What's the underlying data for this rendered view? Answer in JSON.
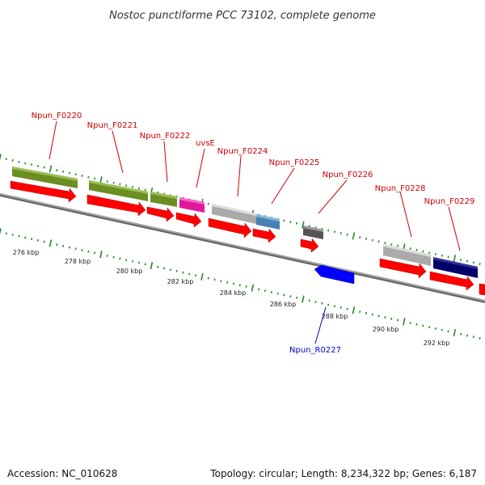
{
  "title": "Nostoc punctiforme PCC 73102, complete genome",
  "footer": {
    "accession": "Accession: NC_010628",
    "topology": "Topology: circular; Length: 8,234,322 bp; Genes: 6,187"
  },
  "colors": {
    "forward_label": "#cc0000",
    "reverse_label": "#0000cc",
    "forward_cds": "#ff0000",
    "reverse_feature": "#0000ff",
    "backbone": "#888888",
    "tick": "#228b22"
  },
  "axis": {
    "unit": "kbp",
    "labels": [
      "276 kbp",
      "278 kbp",
      "280 kbp",
      "282 kbp",
      "284 kbp",
      "286 kbp",
      "288 kbp",
      "290 kbp",
      "292 kbp"
    ]
  },
  "genes": [
    {
      "label": "Npun_F0220",
      "strand": "+"
    },
    {
      "label": "Npun_F0221",
      "strand": "+"
    },
    {
      "label": "Npun_F0222",
      "strand": "+"
    },
    {
      "label": "uvsE",
      "strand": "+"
    },
    {
      "label": "Npun_F0224",
      "strand": "+"
    },
    {
      "label": "Npun_F0225",
      "strand": "+"
    },
    {
      "label": "Npun_F0226",
      "strand": "+"
    },
    {
      "label": "Npun_R0227",
      "strand": "-"
    },
    {
      "label": "Npun_F0228",
      "strand": "+"
    },
    {
      "label": "Npun_F0229",
      "strand": "+"
    }
  ]
}
